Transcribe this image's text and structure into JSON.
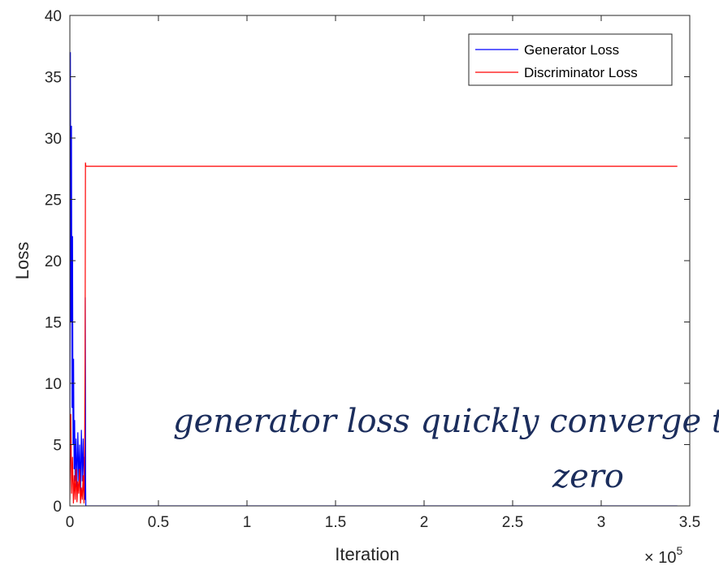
{
  "chart_data": {
    "type": "line",
    "xlabel": "Iteration",
    "ylabel": "Loss",
    "xlim": [
      0,
      3.5
    ],
    "ylim": [
      0,
      40
    ],
    "x_ticks": [
      "0",
      "0.5",
      "1",
      "1.5",
      "2",
      "2.5",
      "3",
      "3.5"
    ],
    "y_ticks": [
      "0",
      "5",
      "10",
      "15",
      "20",
      "25",
      "30",
      "35",
      "40"
    ],
    "x_multiplier": "× 10",
    "x_multiplier_exponent": "5",
    "grid": false,
    "legend_position": "top-right",
    "series": [
      {
        "name": "Generator Loss",
        "color": "#0000ff",
        "x": [
          0,
          0.003,
          0.006,
          0.009,
          0.012,
          0.015,
          0.018,
          0.021,
          0.024,
          0.027,
          0.03,
          0.035,
          0.04,
          0.045,
          0.05,
          0.055,
          0.06,
          0.065,
          0.07,
          0.075,
          0.08,
          0.082,
          0.085,
          0.087,
          0.089,
          0.09,
          0.1,
          0.5,
          1,
          1.5,
          2,
          2.5,
          3,
          3.43
        ],
        "y": [
          3,
          37,
          15,
          31,
          8,
          22,
          5,
          12,
          3,
          7,
          2,
          5.5,
          1.5,
          6,
          2,
          5,
          1,
          6.2,
          2,
          5.5,
          1,
          4,
          0.5,
          17,
          2,
          0,
          0,
          0,
          0,
          0,
          0,
          0,
          0,
          0
        ]
      },
      {
        "name": "Discriminator Loss",
        "color": "#ff0000",
        "x": [
          0,
          0.005,
          0.01,
          0.015,
          0.02,
          0.025,
          0.03,
          0.035,
          0.04,
          0.045,
          0.05,
          0.055,
          0.06,
          0.065,
          0.07,
          0.075,
          0.08,
          0.083,
          0.086,
          0.088,
          0.09,
          0.1,
          0.5,
          1,
          1.5,
          2,
          2.5,
          3,
          3.43
        ],
        "y": [
          0.5,
          7.5,
          1,
          4,
          0.2,
          2.5,
          0.5,
          3,
          0.3,
          2,
          1,
          3,
          0.2,
          1.5,
          0.5,
          2.5,
          0.2,
          4,
          12,
          28,
          27.7,
          27.7,
          27.7,
          27.7,
          27.7,
          27.7,
          27.7,
          27.7,
          27.7
        ]
      }
    ]
  },
  "annotation": {
    "line1": "generator loss quickly converge to",
    "line2": "zero"
  }
}
